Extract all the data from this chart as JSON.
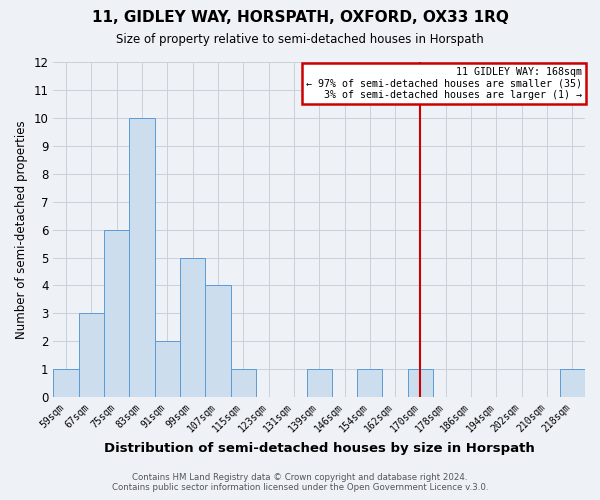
{
  "title": "11, GIDLEY WAY, HORSPATH, OXFORD, OX33 1RQ",
  "subtitle": "Size of property relative to semi-detached houses in Horspath",
  "xlabel": "Distribution of semi-detached houses by size in Horspath",
  "ylabel": "Number of semi-detached properties",
  "bin_labels": [
    "59sqm",
    "67sqm",
    "75sqm",
    "83sqm",
    "91sqm",
    "99sqm",
    "107sqm",
    "115sqm",
    "123sqm",
    "131sqm",
    "139sqm",
    "146sqm",
    "154sqm",
    "162sqm",
    "170sqm",
    "178sqm",
    "186sqm",
    "194sqm",
    "202sqm",
    "210sqm",
    "218sqm"
  ],
  "bar_heights": [
    1,
    3,
    6,
    10,
    2,
    5,
    4,
    1,
    0,
    0,
    1,
    0,
    1,
    0,
    1,
    0,
    0,
    0,
    0,
    0,
    1
  ],
  "bar_color": "#ccdded",
  "bar_edge_color": "#5b9bd5",
  "grid_color": "#c8d0dc",
  "background_color": "#eef2f7",
  "vline_x_index": 14,
  "vline_color": "#cc0000",
  "annotation_title": "11 GIDLEY WAY: 168sqm",
  "annotation_line1": "← 97% of semi-detached houses are smaller (35)",
  "annotation_line2": "3% of semi-detached houses are larger (1) →",
  "annotation_box_color": "#ffffff",
  "annotation_edge_color": "#cc0000",
  "ylim": [
    0,
    12
  ],
  "yticks": [
    0,
    1,
    2,
    3,
    4,
    5,
    6,
    7,
    8,
    9,
    10,
    11,
    12
  ],
  "footer_line1": "Contains HM Land Registry data © Crown copyright and database right 2024.",
  "footer_line2": "Contains public sector information licensed under the Open Government Licence v.3.0."
}
